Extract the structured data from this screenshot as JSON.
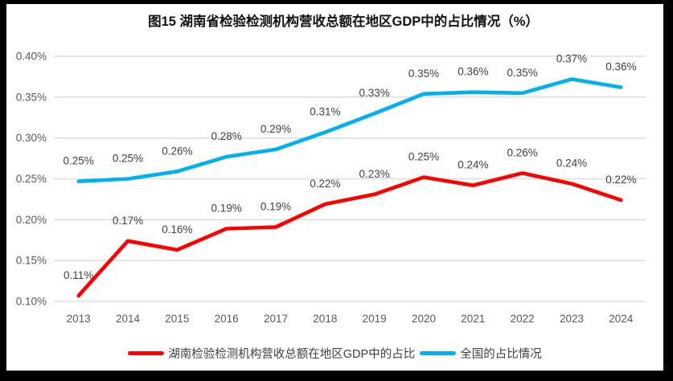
{
  "chart_data": {
    "type": "line",
    "title": "图15 湖南省检验检测机构营收总额在地区GDP中的占比情况（%）",
    "categories": [
      "2013",
      "2014",
      "2015",
      "2016",
      "2017",
      "2018",
      "2019",
      "2020",
      "2021",
      "2022",
      "2023",
      "2024"
    ],
    "series": [
      {
        "name": "湖南检验检测机构营收总额在地区GDP中的占比",
        "color": "#FF0000",
        "values": [
          0.107,
          0.174,
          0.163,
          0.189,
          0.191,
          0.219,
          0.231,
          0.252,
          0.242,
          0.257,
          0.244,
          0.224
        ],
        "labels": [
          "0.11%",
          "0.17%",
          "0.16%",
          "0.19%",
          "0.19%",
          "0.22%",
          "0.23%",
          "0.25%",
          "0.24%",
          "0.26%",
          "0.24%",
          "0.22%"
        ]
      },
      {
        "name": "全国的占比情况",
        "color": "#00B0F0",
        "values": [
          0.247,
          0.25,
          0.259,
          0.277,
          0.286,
          0.307,
          0.33,
          0.354,
          0.356,
          0.355,
          0.372,
          0.362
        ],
        "labels": [
          "0.25%",
          "0.25%",
          "0.26%",
          "0.28%",
          "0.29%",
          "0.31%",
          "0.33%",
          "0.35%",
          "0.36%",
          "0.35%",
          "0.37%",
          "0.36%"
        ]
      }
    ],
    "y_axis": {
      "min": 0.1,
      "max": 0.4,
      "ticks": [
        {
          "value": 0.4,
          "label": "0.40%"
        },
        {
          "value": 0.35,
          "label": "0.35%"
        },
        {
          "value": 0.3,
          "label": "0.30%"
        },
        {
          "value": 0.25,
          "label": "0.25%"
        },
        {
          "value": 0.2,
          "label": "0.20%"
        },
        {
          "value": 0.15,
          "label": "0.15%"
        },
        {
          "value": 0.1,
          "label": "0.10%"
        }
      ]
    },
    "grid": true,
    "legend_position": "bottom",
    "ylim": [
      0.1,
      0.4
    ]
  },
  "colors": {
    "gridline": "#D9D9D9",
    "axis_text": "#595959",
    "data_label": "#404040",
    "frame": "#000000",
    "background": "#FFFFFF"
  }
}
